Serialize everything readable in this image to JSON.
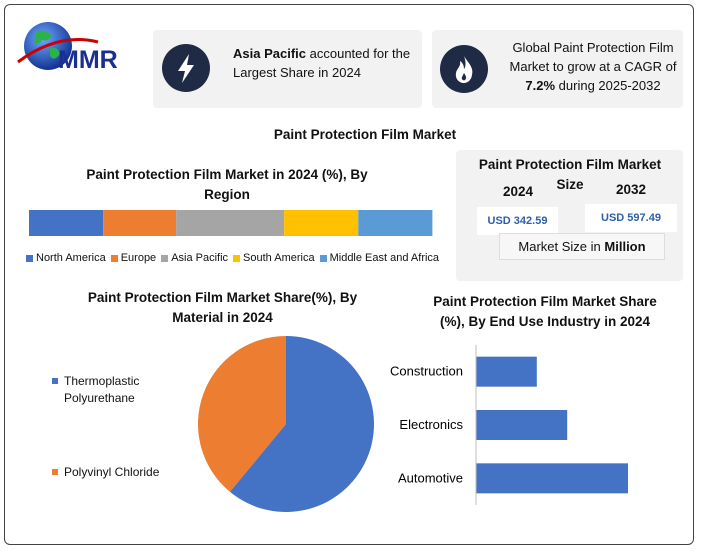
{
  "logo": "MMR",
  "highlights": [
    {
      "bold": "Asia Pacific",
      "text": "accounted for the Largest Share in 2024"
    },
    {
      "text": "Global Paint Protection Film Market to grow at a CAGR of",
      "bold": "7.2%",
      "text_after": "during 2025-2032"
    }
  ],
  "page_title": "Paint Protection Film Market",
  "market_size": {
    "title": "Paint Protection Film Market Size",
    "years": [
      "2024",
      "2032"
    ],
    "values": [
      "USD 342.59",
      "USD 597.49"
    ],
    "note": "Market Size in",
    "note_unit": "Million"
  },
  "chart_data": [
    {
      "type": "stacked_bar",
      "title": "Paint Protection Film Market in 2024 (%), By Region",
      "categories": [
        null
      ],
      "xlim": [
        0,
        100
      ],
      "legend": "bottom",
      "series": [
        {
          "name": "North America",
          "color": "#4472c4",
          "values": [
            18.4
          ]
        },
        {
          "name": "Europe",
          "color": "#ed7d31",
          "values": [
            18.1
          ]
        },
        {
          "name": "Asia Pacific",
          "color": "#a5a5a5",
          "values": [
            26.8
          ]
        },
        {
          "name": "South America",
          "color": "#ffc000",
          "values": [
            18.4
          ]
        },
        {
          "name": "Middle East and Africa",
          "color": "#5b9bd5",
          "values": [
            18.4
          ]
        }
      ]
    },
    {
      "type": "pie",
      "title": "Paint Protection Film Market Share(%), By Material  in 2024",
      "categories": [
        "Thermoplastic Polyurethane",
        "Polyvinyl Chloride"
      ],
      "values": [
        61,
        39
      ],
      "colors": [
        "#4472c4",
        "#ed7d31"
      ],
      "legend": "left"
    },
    {
      "type": "bar",
      "orientation": "horizontal",
      "title": "Paint Protection Film Market Share (%), By End Use Industry in 2024",
      "categories": [
        "Construction",
        "Electronics",
        "Automotive"
      ],
      "values": [
        20,
        30,
        50
      ],
      "color": "#4472c4",
      "xlim": [
        0,
        50
      ]
    }
  ]
}
